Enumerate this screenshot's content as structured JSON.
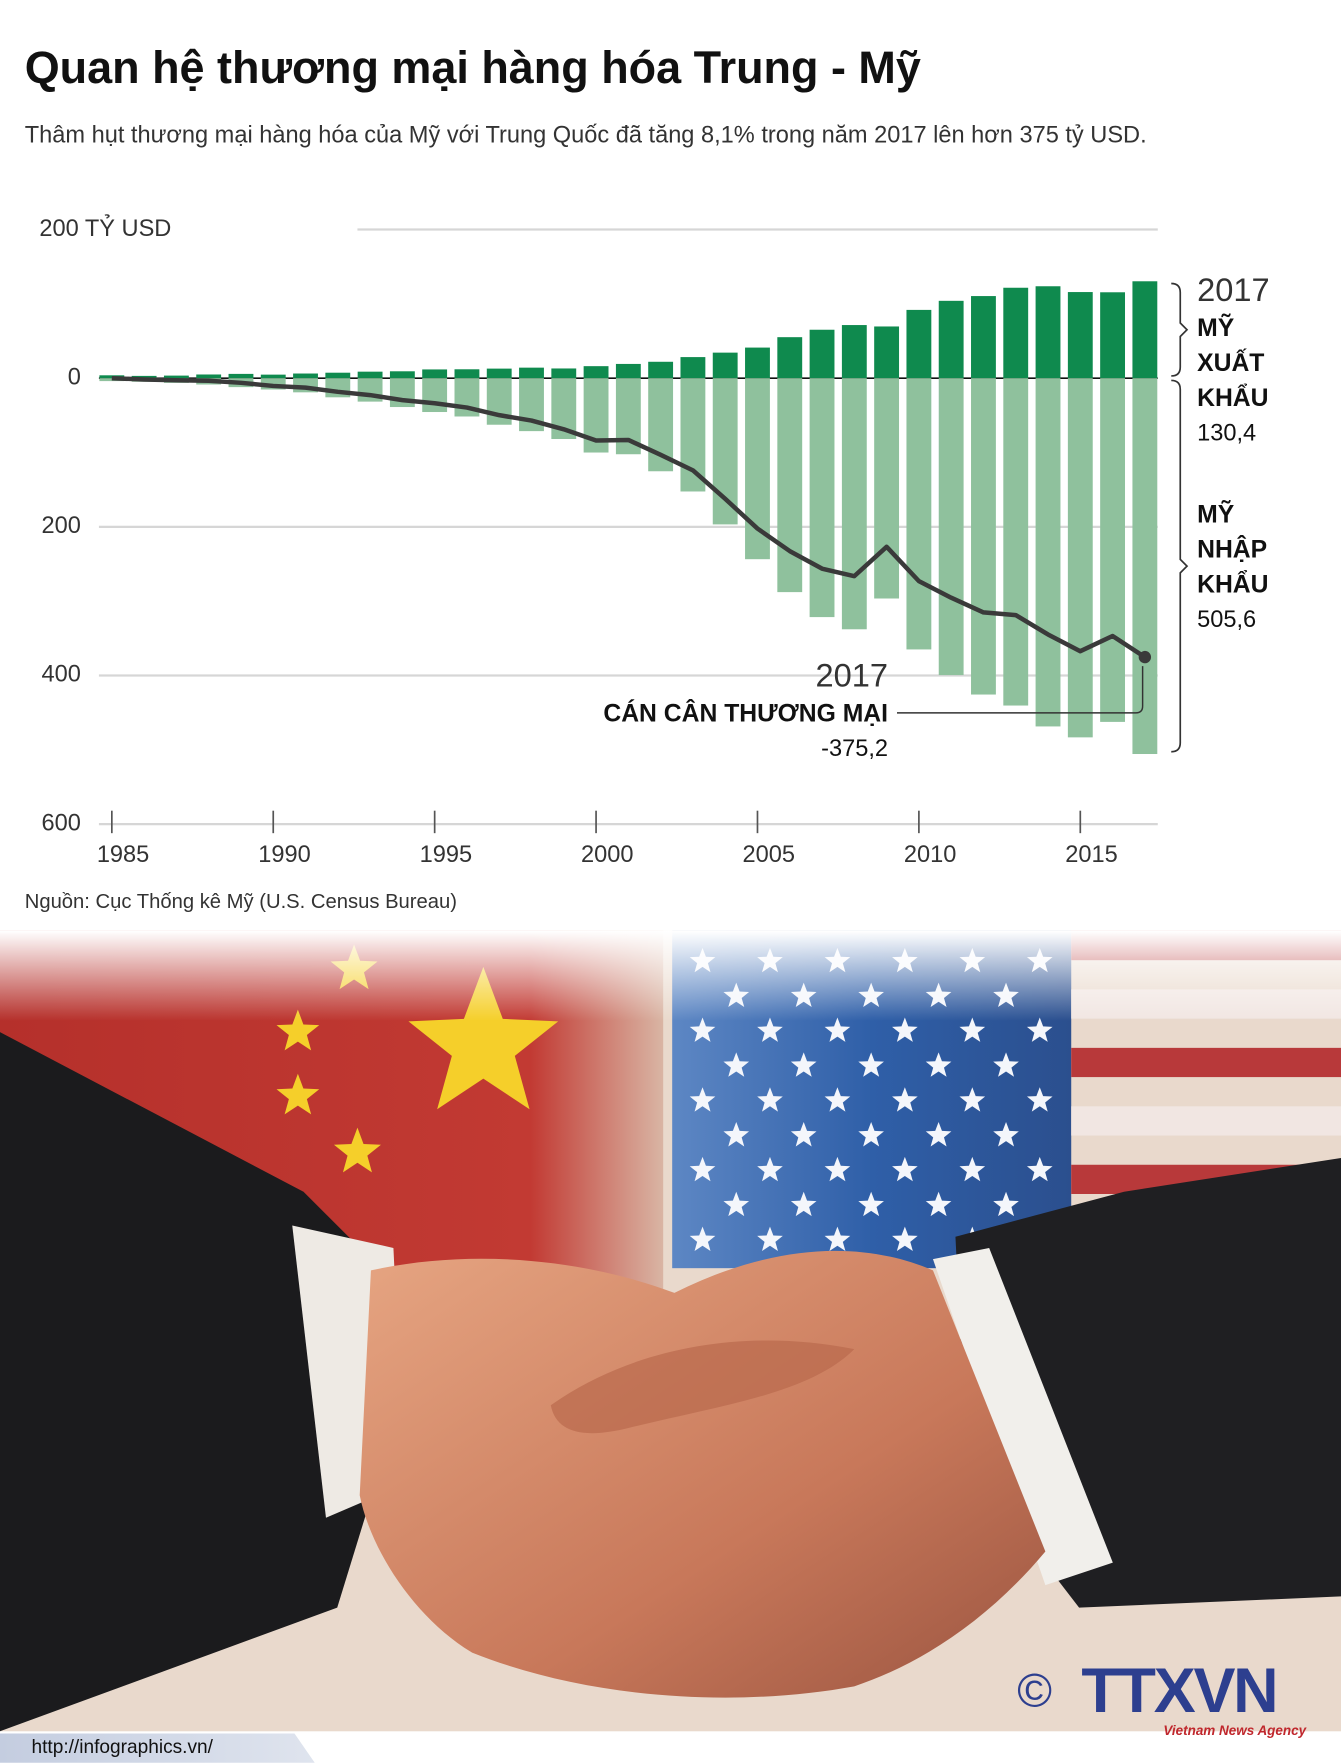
{
  "chart_data": {
    "type": "bar",
    "title": "Quan hệ thương mại hàng hóa Trung - Mỹ",
    "subtitle": "Thâm hụt thương mại hàng hóa của Mỹ với Trung Quốc đã tăng 8,1% trong năm 2017 lên hơn 375 tỷ USD.",
    "source": "Nguồn: Cục Thống kê Mỹ (U.S. Census Bureau)",
    "x": [
      1985,
      1986,
      1987,
      1988,
      1989,
      1990,
      1991,
      1992,
      1993,
      1994,
      1995,
      1996,
      1997,
      1998,
      1999,
      2000,
      2001,
      2002,
      2003,
      2004,
      2005,
      2006,
      2007,
      2008,
      2009,
      2010,
      2011,
      2012,
      2013,
      2014,
      2015,
      2016,
      2017
    ],
    "xlim": [
      1984.6,
      2017.4
    ],
    "xticks": [
      1985,
      1990,
      1995,
      2000,
      2005,
      2010,
      2015
    ],
    "ylim": [
      -600,
      200
    ],
    "yticks": [
      {
        "value": 200,
        "label": "200 TỶ USD"
      },
      0,
      {
        "value": -200,
        "label": "200"
      },
      {
        "value": -400,
        "label": "400"
      },
      {
        "value": -600,
        "label": "600"
      }
    ],
    "grid": true,
    "series": [
      {
        "type": "bar",
        "color": "#0f8a4e",
        "values": [
          3.9,
          3.1,
          3.5,
          5.0,
          5.8,
          4.8,
          6.3,
          7.4,
          8.8,
          9.3,
          11.8,
          12.0,
          12.9,
          14.2,
          13.1,
          16.2,
          19.2,
          22.1,
          28.4,
          34.4,
          41.2,
          55.2,
          65.2,
          71.5,
          69.6,
          91.9,
          104.1,
          110.5,
          121.7,
          123.7,
          115.9,
          115.6,
          130.4
        ],
        "annotation": {
          "x": 2017,
          "lines": [
            "MỸ",
            "XUẤT",
            "KHẨU"
          ],
          "value_label": "130,4"
        }
      },
      {
        "type": "bar",
        "color": "#8fc19d",
        "values": [
          -3.9,
          -4.8,
          -6.3,
          -8.5,
          -12.0,
          -15.2,
          -19.0,
          -25.7,
          -31.5,
          -38.8,
          -45.5,
          -51.5,
          -62.6,
          -71.2,
          -81.8,
          -100.0,
          -102.3,
          -125.2,
          -152.4,
          -196.7,
          -243.5,
          -287.8,
          -321.4,
          -337.8,
          -296.4,
          -364.9,
          -399.4,
          -425.6,
          -440.4,
          -468.5,
          -483.2,
          -462.4,
          -505.6
        ],
        "annotation": {
          "lines": [
            "MỸ",
            "NHẬP",
            "KHẨU"
          ],
          "value_label": "505,6"
        }
      },
      {
        "type": "line",
        "color": "#3a3a3a",
        "values": [
          0.0,
          -1.7,
          -2.8,
          -3.5,
          -6.2,
          -10.4,
          -12.7,
          -18.3,
          -22.7,
          -29.5,
          -33.7,
          -39.5,
          -49.7,
          -57.0,
          -68.7,
          -83.8,
          -83.1,
          -103.1,
          -124.0,
          -162.3,
          -202.3,
          -232.6,
          -256.2,
          -266.3,
          -226.8,
          -273.0,
          -295.3,
          -315.1,
          -318.7,
          -344.8,
          -367.3,
          -346.8,
          -375.2
        ],
        "annotation": {
          "x": 2017,
          "lines": [
            "CÁN CÂN THƯƠNG MẠI"
          ],
          "value_label": "-375,2"
        }
      }
    ]
  },
  "footer": {
    "url": "http://infographics.vn/",
    "copyright": "©",
    "logo": "TTXVN",
    "agency": "Vietnam News Agency"
  }
}
